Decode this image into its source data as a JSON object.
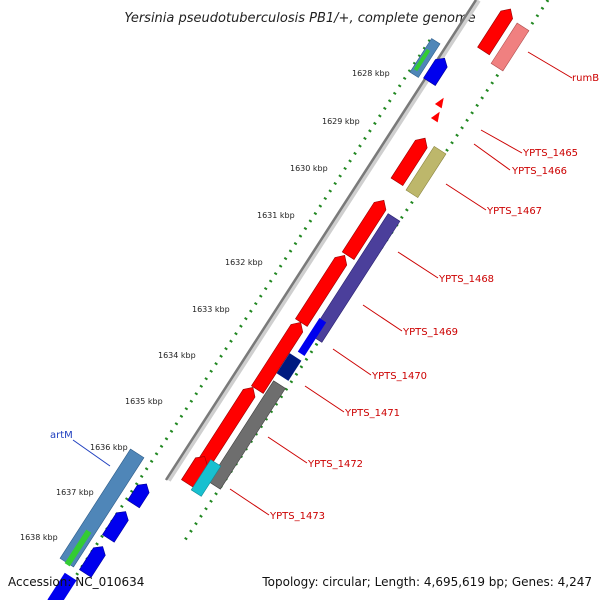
{
  "title": "Yersinia pseudotuberculosis PB1/+, complete genome",
  "footer": {
    "accession": "Accession: NC_010634",
    "summary": "Topology: circular; Length: 4,695,619 bp; Genes: 4,247"
  },
  "ticks": [
    "1628 kbp",
    "1629 kbp",
    "1630 kbp",
    "1631 kbp",
    "1632 kbp",
    "1633 kbp",
    "1634 kbp",
    "1635 kbp",
    "1636 kbp",
    "1637 kbp",
    "1638 kbp"
  ],
  "gene_labels": [
    {
      "text": "rumB",
      "color": "#cc0000"
    },
    {
      "text": "YPTS_1465",
      "color": "#cc0000"
    },
    {
      "text": "YPTS_1466",
      "color": "#cc0000"
    },
    {
      "text": "YPTS_1467",
      "color": "#cc0000"
    },
    {
      "text": "YPTS_1468",
      "color": "#cc0000"
    },
    {
      "text": "YPTS_1469",
      "color": "#cc0000"
    },
    {
      "text": "YPTS_1470",
      "color": "#cc0000"
    },
    {
      "text": "YPTS_1471",
      "color": "#cc0000"
    },
    {
      "text": "YPTS_1472",
      "color": "#cc0000"
    },
    {
      "text": "YPTS_1473",
      "color": "#cc0000"
    },
    {
      "text": "artM",
      "color": "#1f3fbf"
    }
  ],
  "colors": {
    "cds": "#ff0000",
    "cds_light": "#f08080",
    "blue": "#0000ee",
    "steel_blue": "#4f86b8",
    "green": "#33cc33",
    "olive": "#bdb76b",
    "slate": "#4b3f9b",
    "navy": "#001a80",
    "gray": "#6e6e6e",
    "cyan": "#18c0d0",
    "backbone": "#7a7a7a",
    "tick_dots": "#228822"
  }
}
